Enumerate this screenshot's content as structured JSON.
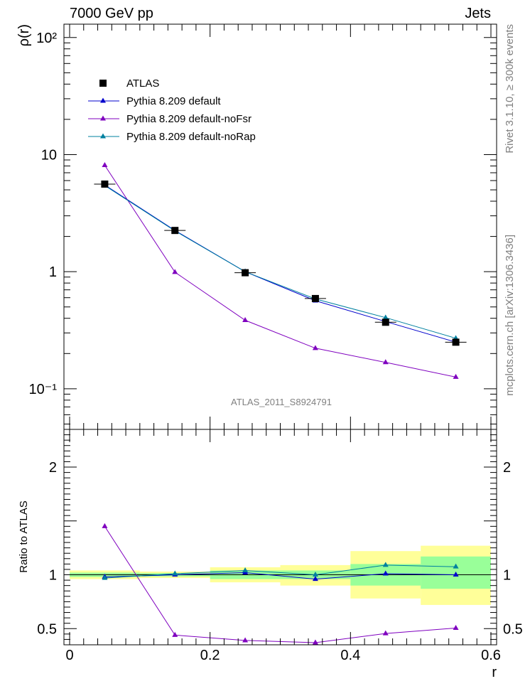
{
  "header": {
    "left": "7000 GeV pp",
    "right": "Jets"
  },
  "side_text": {
    "rivet": "Rivet 3.1.10, ≥ 300k events",
    "mcplots": "mcplots.cern.ch [arXiv:1306.3436]"
  },
  "watermark": "ATLAS_2011_S8924791",
  "legend": {
    "atlas": "ATLAS",
    "default": "Pythia 8.209 default",
    "nofsr": "Pythia 8.209 default-noFsr",
    "norap": "Pythia 8.209 default-noRap"
  },
  "colors": {
    "atlas": "#000000",
    "default": "#0000cc",
    "nofsr": "#7f00bf",
    "norap": "#00809f",
    "band_stat": "#99ff99",
    "band_tot": "#ffff99"
  },
  "chart_data": [
    {
      "type": "line",
      "ylabel": "ρ(r)",
      "yscale": "log",
      "ylim": [
        0.045,
        130
      ],
      "xlim": [
        0,
        0.6
      ],
      "ytick_labels": [
        "10⁻¹",
        "1",
        "10",
        "10²"
      ],
      "x": [
        0.05,
        0.15,
        0.25,
        0.35,
        0.45,
        0.55
      ],
      "series": [
        {
          "name": "ATLAS",
          "values": [
            5.6,
            2.25,
            0.98,
            0.59,
            0.37,
            0.25
          ]
        },
        {
          "name": "Pythia 8.209 default",
          "values": [
            5.5,
            2.25,
            1.0,
            0.565,
            0.375,
            0.25
          ]
        },
        {
          "name": "Pythia 8.209 default-noFsr",
          "values": [
            8.1,
            0.99,
            0.385,
            0.222,
            0.168,
            0.126
          ]
        },
        {
          "name": "Pythia 8.209 default-noRap",
          "values": [
            5.45,
            2.23,
            1.0,
            0.585,
            0.405,
            0.27
          ]
        }
      ]
    },
    {
      "type": "line",
      "ylabel": "Ratio to ATLAS",
      "xlabel": "r",
      "ylim": [
        0.35,
        2.35
      ],
      "xlim": [
        0,
        0.6
      ],
      "ytick_labels": [
        "0.5",
        "1",
        "2"
      ],
      "xtick_labels": [
        "0",
        "0.2",
        "0.4",
        "0.6"
      ],
      "x": [
        0.05,
        0.15,
        0.25,
        0.35,
        0.45,
        0.55
      ],
      "bands": {
        "edges": [
          0,
          0.1,
          0.2,
          0.3,
          0.4,
          0.5,
          0.6
        ],
        "stat": [
          [
            0.98,
            1.02
          ],
          [
            0.985,
            1.015
          ],
          [
            0.96,
            1.04
          ],
          [
            0.96,
            1.04
          ],
          [
            0.9,
            1.1
          ],
          [
            0.87,
            1.17
          ]
        ],
        "total": [
          [
            0.96,
            1.04
          ],
          [
            0.97,
            1.03
          ],
          [
            0.93,
            1.07
          ],
          [
            0.9,
            1.09
          ],
          [
            0.78,
            1.22
          ],
          [
            0.72,
            1.27
          ]
        ]
      },
      "series": [
        {
          "name": "Pythia 8.209 default",
          "values": [
            0.98,
            1.0,
            1.02,
            0.96,
            1.01,
            1.0
          ]
        },
        {
          "name": "Pythia 8.209 default-noFsr",
          "values": [
            1.45,
            0.44,
            0.39,
            0.37,
            0.455,
            0.505
          ]
        },
        {
          "name": "Pythia 8.209 default-noRap",
          "values": [
            0.97,
            1.01,
            1.04,
            1.0,
            1.09,
            1.075
          ]
        }
      ]
    }
  ]
}
